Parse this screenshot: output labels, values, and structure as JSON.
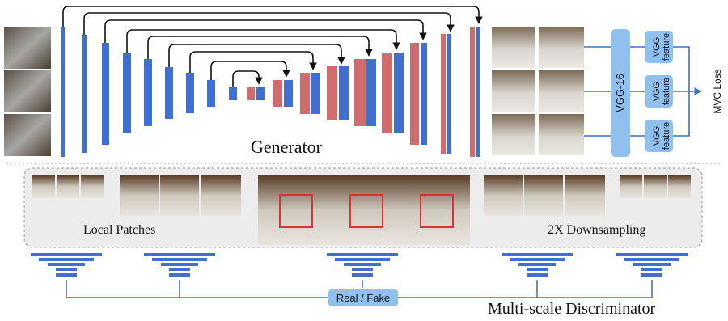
{
  "generator": {
    "label": "Generator"
  },
  "vgg": {
    "label": "VGG-16",
    "feature_label_line1": "VGG",
    "feature_label_line2": "feature",
    "feature_count": 3
  },
  "loss": {
    "label": "MVC Loss"
  },
  "discriminator": {
    "local_patches_label": "Local Patches",
    "downsampling_label": "2X Downsampling",
    "real_fake_label": "Real / Fake",
    "title": "Multi-scale Discriminator"
  },
  "colors": {
    "blue": "#3f6fd1",
    "red": "#d06b6e",
    "light_blue": "#8fc0ee",
    "panel_bg": "#ececec",
    "panel_border": "#9a9a9a",
    "arrow": "#111111",
    "photo_silver": "#8a8a8a",
    "photo_white": "#cdcac3",
    "photo_brown": "#6b4a30",
    "highlight_red": "#e03030"
  },
  "icons": [
    "render-photo",
    "statue-photo",
    "encoder-bar",
    "decoder-bar",
    "skip-arrow",
    "pyramid-discriminator-icon"
  ]
}
